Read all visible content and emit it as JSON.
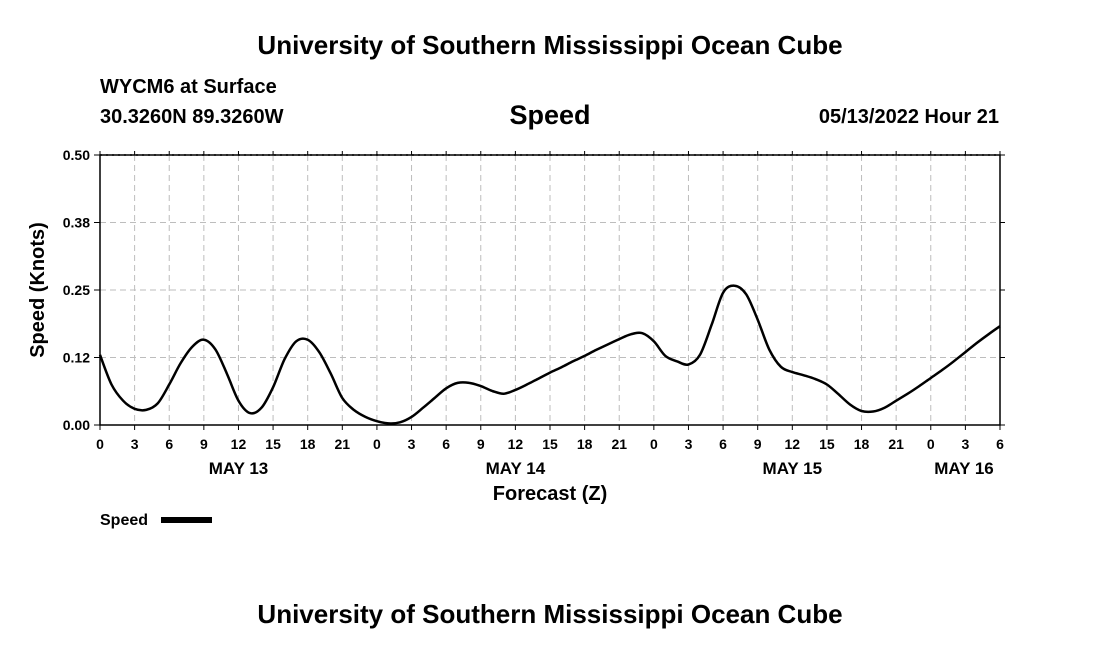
{
  "header": {
    "title": "University of Southern Mississippi Ocean Cube",
    "station": "WYCM6 at Surface",
    "coords": "30.3260N  89.3260W",
    "timestamp": "05/13/2022 Hour 21"
  },
  "footer": {
    "title": "University of Southern Mississippi Ocean Cube"
  },
  "chart_data": {
    "type": "line",
    "title": "Speed",
    "xlabel": "Forecast (Z)",
    "ylabel": "Speed (Knots)",
    "xlim": [
      0,
      78
    ],
    "ylim": [
      0,
      0.5
    ],
    "yticks": [
      0.0,
      0.125,
      0.25,
      0.375,
      0.5
    ],
    "ytick_labels": [
      "0.00",
      "0.12",
      "0.25",
      "0.38",
      "0.50"
    ],
    "xticks": [
      0,
      3,
      6,
      9,
      12,
      15,
      18,
      21,
      24,
      27,
      30,
      33,
      36,
      39,
      42,
      45,
      48,
      51,
      54,
      57,
      60,
      63,
      66,
      69,
      72,
      75,
      78
    ],
    "xtick_labels": [
      "0",
      "3",
      "6",
      "9",
      "12",
      "15",
      "18",
      "21",
      "0",
      "3",
      "6",
      "9",
      "12",
      "15",
      "18",
      "21",
      "0",
      "3",
      "6",
      "9",
      "12",
      "15",
      "18",
      "21",
      "0",
      "3",
      "6"
    ],
    "day_labels": [
      {
        "x": 12,
        "label": "MAY 13"
      },
      {
        "x": 36,
        "label": "MAY 14"
      },
      {
        "x": 60,
        "label": "MAY 15"
      },
      {
        "x": 78,
        "label": "MAY 16"
      }
    ],
    "grid": true,
    "legend_position": "bottom-left",
    "series": [
      {
        "name": "Speed",
        "color": "#000000",
        "x": [
          0,
          1,
          2,
          3,
          4,
          5,
          6,
          7,
          8,
          9,
          10,
          11,
          12,
          13,
          14,
          15,
          16,
          17,
          18,
          19,
          20,
          21,
          22,
          23,
          24,
          25,
          26,
          27,
          28,
          29,
          30,
          31,
          32,
          33,
          34,
          35,
          36,
          37,
          38,
          39,
          40,
          41,
          42,
          43,
          44,
          45,
          46,
          47,
          48,
          49,
          50,
          51,
          52,
          53,
          54,
          55,
          56,
          57,
          58,
          59,
          60,
          61,
          62,
          63,
          64,
          65,
          66,
          67,
          68,
          69,
          70,
          71,
          72,
          73,
          74,
          75,
          76,
          77,
          78
        ],
        "values": [
          0.13,
          0.075,
          0.045,
          0.03,
          0.028,
          0.04,
          0.075,
          0.115,
          0.145,
          0.158,
          0.14,
          0.095,
          0.045,
          0.022,
          0.032,
          0.07,
          0.122,
          0.155,
          0.158,
          0.135,
          0.095,
          0.05,
          0.028,
          0.015,
          0.007,
          0.003,
          0.005,
          0.015,
          0.032,
          0.05,
          0.068,
          0.078,
          0.078,
          0.072,
          0.063,
          0.058,
          0.065,
          0.075,
          0.086,
          0.097,
          0.107,
          0.118,
          0.128,
          0.139,
          0.149,
          0.159,
          0.168,
          0.17,
          0.155,
          0.128,
          0.118,
          0.112,
          0.13,
          0.185,
          0.245,
          0.258,
          0.242,
          0.195,
          0.14,
          0.108,
          0.098,
          0.092,
          0.085,
          0.075,
          0.057,
          0.038,
          0.026,
          0.025,
          0.032,
          0.045,
          0.058,
          0.072,
          0.087,
          0.102,
          0.118,
          0.135,
          0.152,
          0.168,
          0.183
        ]
      }
    ]
  }
}
